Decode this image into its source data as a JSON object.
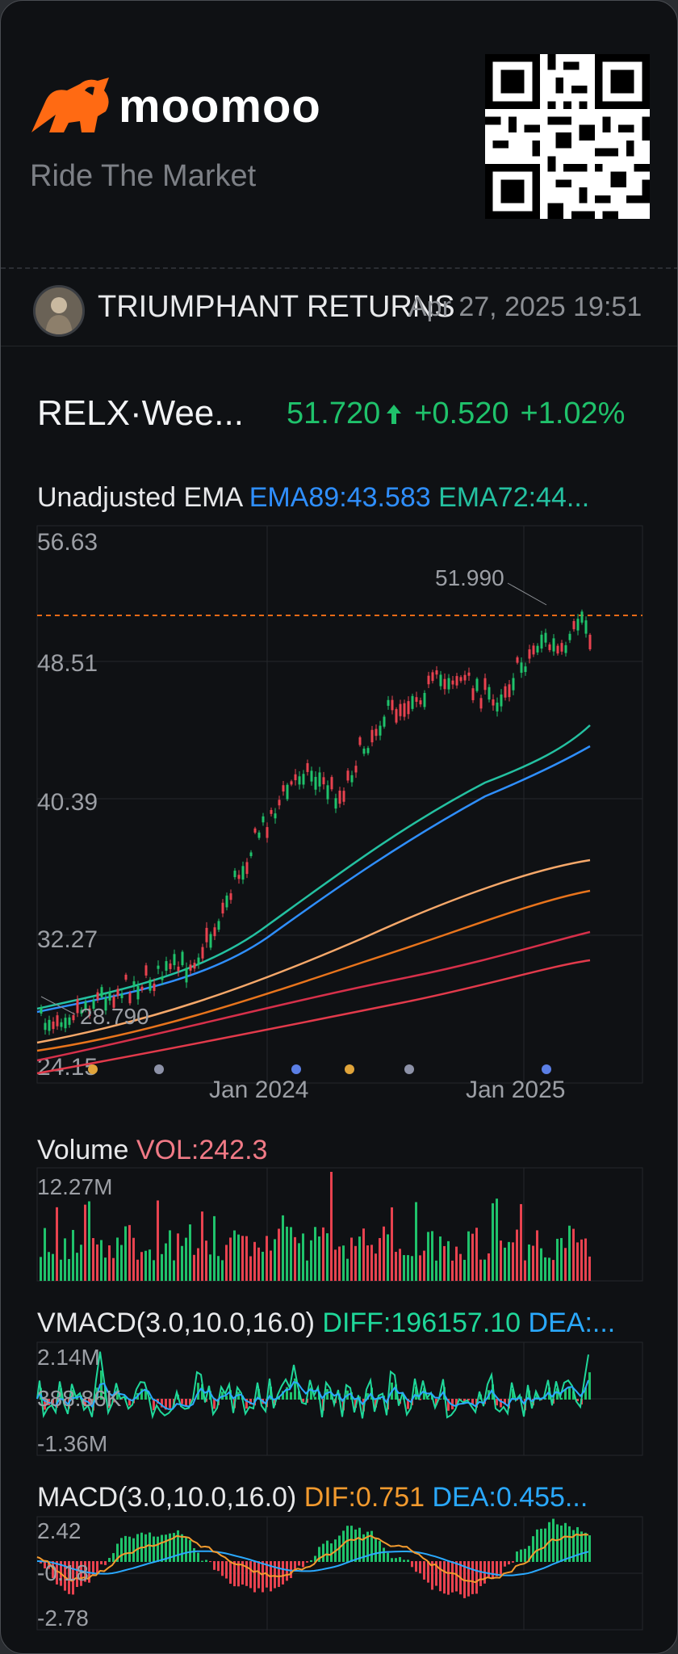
{
  "brand": {
    "name": "moomoo",
    "tagline": "Ride The Market",
    "logo_icon": "bull-icon"
  },
  "post": {
    "author": "TRIUMPHANT RETURNS",
    "timestamp": "Apr 27, 2025 19:51"
  },
  "quote": {
    "symbol": "RELX·Wee...",
    "price": "51.720",
    "change": "+0.520",
    "change_pct": "+1.02%",
    "direction_icon": "arrow-up-icon",
    "up_color": "#1fc26b"
  },
  "main_chart": {
    "title": "Unadjusted EMA",
    "ema89_label": "EMA89:43.583",
    "ema72_label": "EMA72:44...",
    "y_ticks": [
      "56.63",
      "48.51",
      "40.39",
      "32.27",
      "24.15"
    ],
    "x_ticks": [
      "Jan 2024",
      "Jan 2025"
    ],
    "high_label": "51.990",
    "low_label": "28.790"
  },
  "volume": {
    "title": "Volume",
    "vol_label": "VOL:242.3",
    "max_label": "12.27M"
  },
  "vmacd": {
    "title": "VMACD(3.0,10.0,16.0)",
    "diff_label": "DIFF:196157.10",
    "dea_label": "DEA:...",
    "y_ticks": [
      "2.14M",
      "388.86K",
      "-1.36M"
    ]
  },
  "macd": {
    "title": "MACD(3.0,10.0,16.0)",
    "dif_label": "DIF:0.751",
    "dea_label": "DEA:0.455...",
    "y_ticks": [
      "2.42",
      "-0.18",
      "-2.78"
    ]
  },
  "chart_data": {
    "type": "line",
    "title": "Unadjusted EMA",
    "ylim": [
      24.15,
      56.63
    ],
    "series": [
      {
        "name": "EMA89",
        "values": [
          28.8,
          29.5,
          30.5,
          31.5,
          33.0,
          35.0,
          37.5,
          39.5,
          41.5,
          43.5
        ]
      },
      {
        "name": "EMA72",
        "values": [
          29.0,
          29.8,
          30.8,
          31.8,
          33.5,
          35.8,
          38.3,
          40.5,
          42.6,
          44.3
        ]
      }
    ],
    "high": 51.99,
    "low": 28.79
  }
}
